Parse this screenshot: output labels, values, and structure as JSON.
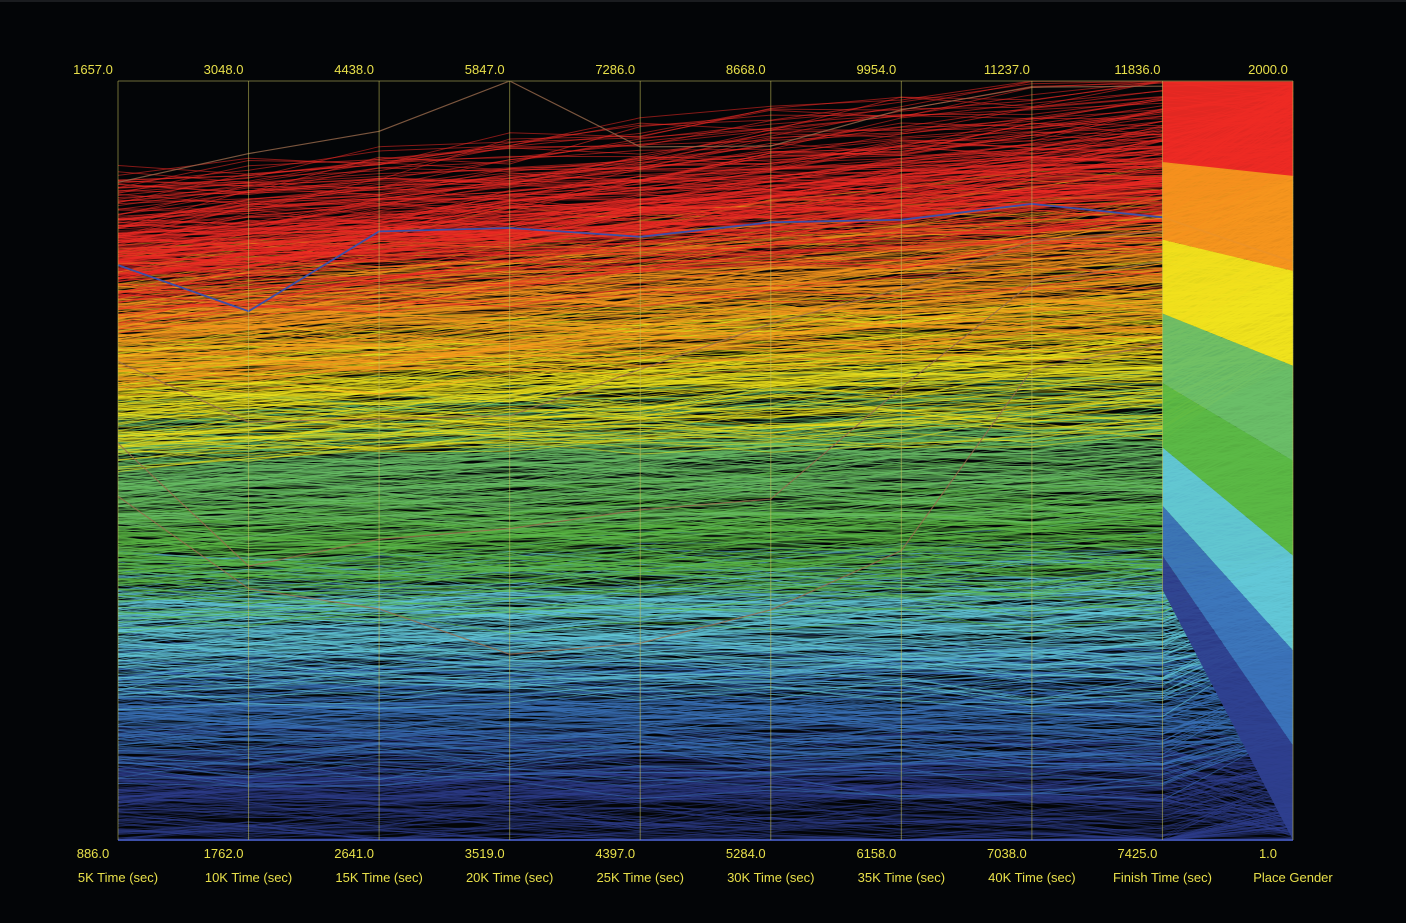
{
  "chart_data": {
    "type": "parallel-coordinates",
    "title": "",
    "axes": [
      {
        "name": "5K Time (sec)",
        "min": 886.0,
        "max": 1657.0
      },
      {
        "name": "10K Time (sec)",
        "min": 1762.0,
        "max": 3048.0
      },
      {
        "name": "15K Time (sec)",
        "min": 2641.0,
        "max": 4438.0
      },
      {
        "name": "20K Time (sec)",
        "min": 3519.0,
        "max": 5847.0
      },
      {
        "name": "25K Time (sec)",
        "min": 4397.0,
        "max": 7286.0
      },
      {
        "name": "30K Time (sec)",
        "min": 5284.0,
        "max": 8668.0
      },
      {
        "name": "35K Time (sec)",
        "min": 6158.0,
        "max": 9954.0
      },
      {
        "name": "40K Time (sec)",
        "min": 7038.0,
        "max": 11237.0
      },
      {
        "name": "Finish Time (sec)",
        "min": 7425.0,
        "max": 11836.0
      },
      {
        "name": "Place Gender",
        "min": 1.0,
        "max": 2000.0
      }
    ],
    "axis_min_labels": [
      "886.0",
      "1762.0",
      "2641.0",
      "3519.0",
      "4397.0",
      "5284.0",
      "6158.0",
      "7038.0",
      "7425.0",
      "1.0"
    ],
    "axis_max_labels": [
      "1657.0",
      "3048.0",
      "4438.0",
      "5847.0",
      "7286.0",
      "8668.0",
      "9954.0",
      "11237.0",
      "11836.0",
      "2000.0"
    ],
    "color_by": "Place Gender",
    "color_bands": [
      {
        "color": "#ee2a24",
        "place_min": 1750,
        "place_max": 2000
      },
      {
        "color": "#f7961d",
        "place_min": 1500,
        "place_max": 1750
      },
      {
        "color": "#f1e41c",
        "place_min": 1250,
        "place_max": 1500
      },
      {
        "color": "#6abf68",
        "place_min": 1000,
        "place_max": 1250
      },
      {
        "color": "#5bb945",
        "place_min": 750,
        "place_max": 1000
      },
      {
        "color": "#62c8d8",
        "place_min": 500,
        "place_max": 750
      },
      {
        "color": "#3b73ba",
        "place_min": 250,
        "place_max": 500
      },
      {
        "color": "#2e3f8f",
        "place_min": 1,
        "place_max": 250
      }
    ],
    "highlight_color": "#3c4fa8",
    "highlighted_record": [
      1470,
      2658,
      4082,
      5396,
      6693,
      8038,
      9260,
      10557,
      11044,
      1524
    ],
    "outlier_records": [
      [
        1554,
        2925,
        4319,
        5847,
        7035,
        8378,
        9810,
        11203,
        11806,
        1995
      ],
      [
        1372,
        2470,
        3639,
        4820,
        6188,
        7586,
        8914,
        10352,
        10962,
        1620
      ],
      [
        1289,
        2226,
        3353,
        4474,
        5654,
        6804,
        8420,
        10120,
        10790,
        1440
      ],
      [
        1235,
        2188,
        3188,
        4089,
        5146,
        6310,
        7605,
        9640,
        10310,
        1300
      ]
    ],
    "grid": false,
    "legend": "none"
  }
}
